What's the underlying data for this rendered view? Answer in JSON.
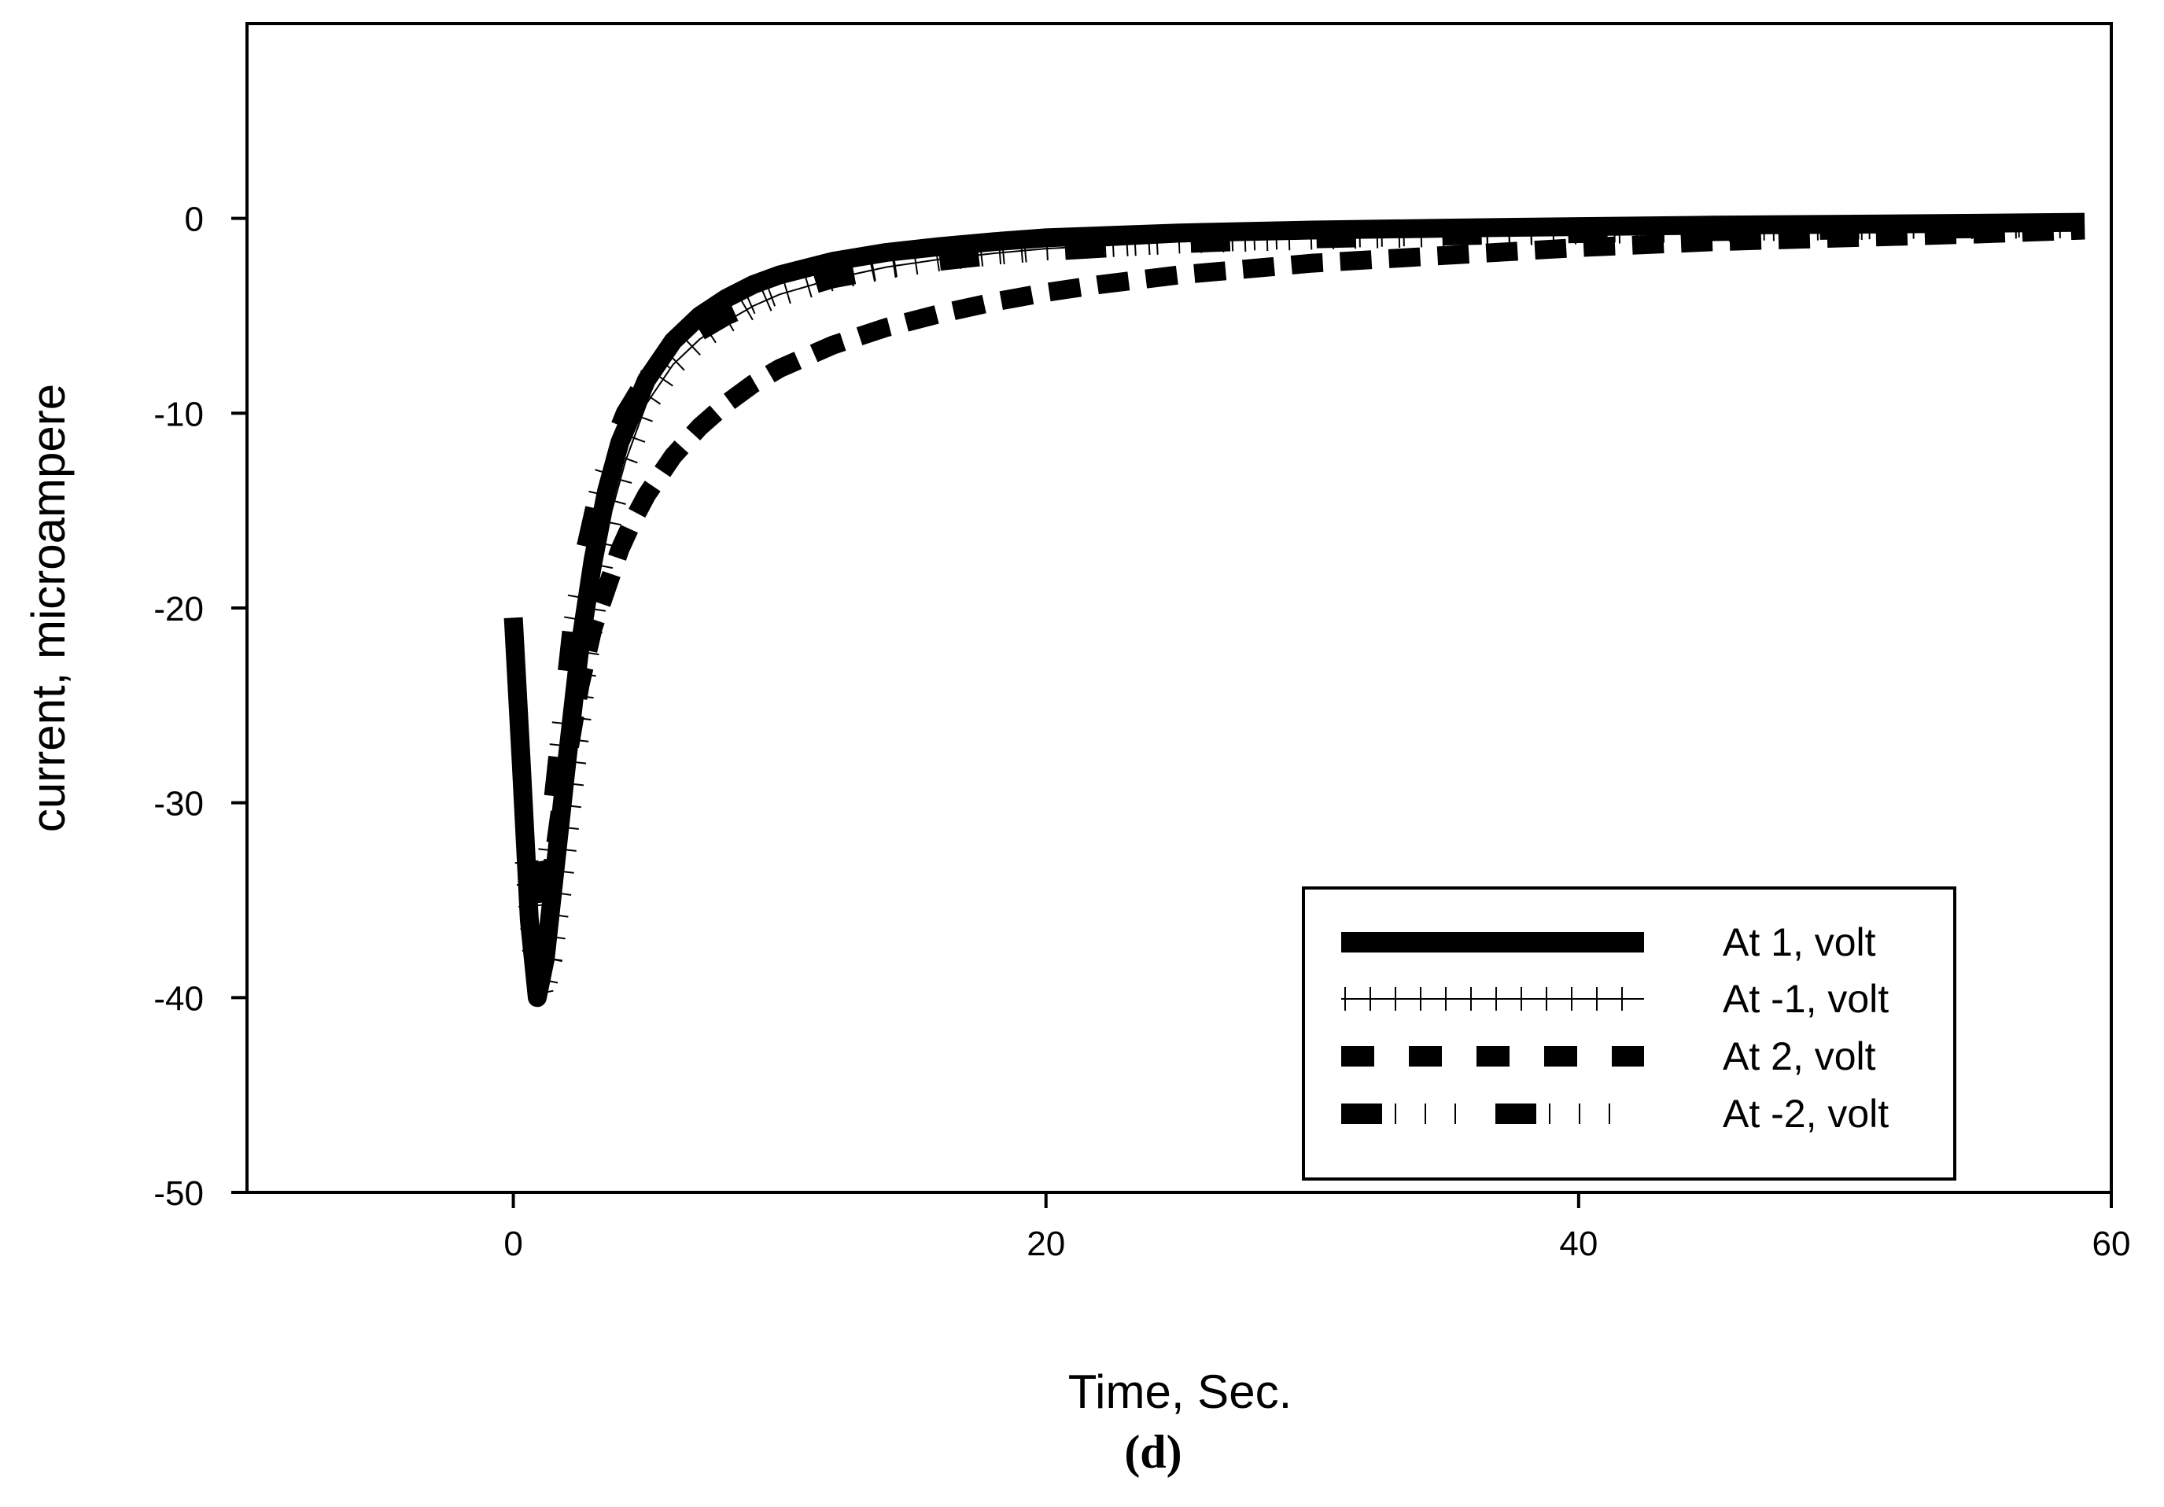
{
  "chart_data": {
    "type": "line",
    "xlabel": "Time, Sec.",
    "ylabel": "current, microampere",
    "panel_label": "(d)",
    "xlim": [
      -10,
      60
    ],
    "ylim": [
      -50,
      10
    ],
    "xticks": [
      0,
      20,
      40,
      60
    ],
    "yticks": [
      0,
      -10,
      -20,
      -30,
      -40,
      -50
    ],
    "grid": false,
    "legend": "bottom-right",
    "series": [
      {
        "name": "At 1, volt",
        "style": "solid-thick",
        "x": [
          0,
          0.3,
          0.6,
          0.9,
          1.2,
          1.6,
          2.0,
          2.5,
          3,
          3.5,
          4,
          5,
          6,
          7,
          8,
          9,
          10,
          12,
          14,
          16,
          18,
          20,
          25,
          30,
          35,
          40,
          45,
          50,
          55,
          59
        ],
        "y": [
          -20.5,
          -28,
          -36,
          -40,
          -38,
          -33,
          -28,
          -22,
          -17.5,
          -14,
          -11.5,
          -8.3,
          -6.3,
          -5.0,
          -4.1,
          -3.4,
          -2.9,
          -2.2,
          -1.75,
          -1.45,
          -1.2,
          -1.0,
          -0.75,
          -0.6,
          -0.5,
          -0.42,
          -0.35,
          -0.3,
          -0.25,
          -0.2
        ]
      },
      {
        "name": "At -1, volt",
        "style": "tick-marks",
        "x": [
          0.5,
          0.8,
          1.1,
          1.4,
          1.8,
          2.2,
          2.7,
          3.2,
          3.7,
          4.2,
          5,
          6,
          7,
          8,
          9,
          10,
          11,
          12,
          14,
          16,
          18,
          20,
          25,
          30,
          35,
          40,
          45,
          50,
          55,
          59
        ],
        "y": [
          -33,
          -38,
          -40,
          -38,
          -34,
          -29,
          -23,
          -18.5,
          -15,
          -12.5,
          -9.5,
          -7.5,
          -6.2,
          -5.3,
          -4.5,
          -3.9,
          -3.5,
          -3.1,
          -2.5,
          -2.1,
          -1.8,
          -1.55,
          -1.2,
          -1.0,
          -0.85,
          -0.72,
          -0.6,
          -0.5,
          -0.45,
          -0.4
        ]
      },
      {
        "name": "At 2, volt",
        "style": "dashed-thick",
        "x": [
          1.0,
          1.3,
          1.6,
          2.0,
          2.5,
          3,
          3.5,
          4,
          4.5,
          5,
          6,
          7,
          8,
          9,
          10,
          12,
          14,
          16,
          18,
          20,
          22,
          25,
          30,
          35,
          40,
          45,
          50,
          55,
          59
        ],
        "y": [
          -33,
          -35,
          -32,
          -28,
          -24,
          -21,
          -19,
          -17,
          -15.5,
          -14.2,
          -12.2,
          -10.7,
          -9.5,
          -8.5,
          -7.7,
          -6.5,
          -5.6,
          -4.9,
          -4.3,
          -3.8,
          -3.4,
          -2.9,
          -2.3,
          -1.9,
          -1.5,
          -1.2,
          -1.0,
          -0.8,
          -0.6
        ]
      },
      {
        "name": "At -2, volt",
        "style": "dash-dot",
        "x": [
          0.8,
          1.1,
          1.4,
          1.8,
          2.2,
          2.7,
          3.2,
          3.7,
          4.2,
          5,
          6,
          7,
          8,
          9,
          10,
          12,
          14,
          16,
          18,
          20,
          25,
          30,
          35,
          40,
          45,
          50,
          55,
          59
        ],
        "y": [
          -34,
          -35,
          -31,
          -26,
          -21,
          -17,
          -14,
          -11.7,
          -10,
          -8.2,
          -6.8,
          -5.8,
          -5.0,
          -4.4,
          -3.9,
          -3.1,
          -2.6,
          -2.2,
          -1.9,
          -1.7,
          -1.3,
          -1.05,
          -0.9,
          -0.78,
          -0.68,
          -0.6,
          -0.53,
          -0.45
        ]
      }
    ]
  }
}
